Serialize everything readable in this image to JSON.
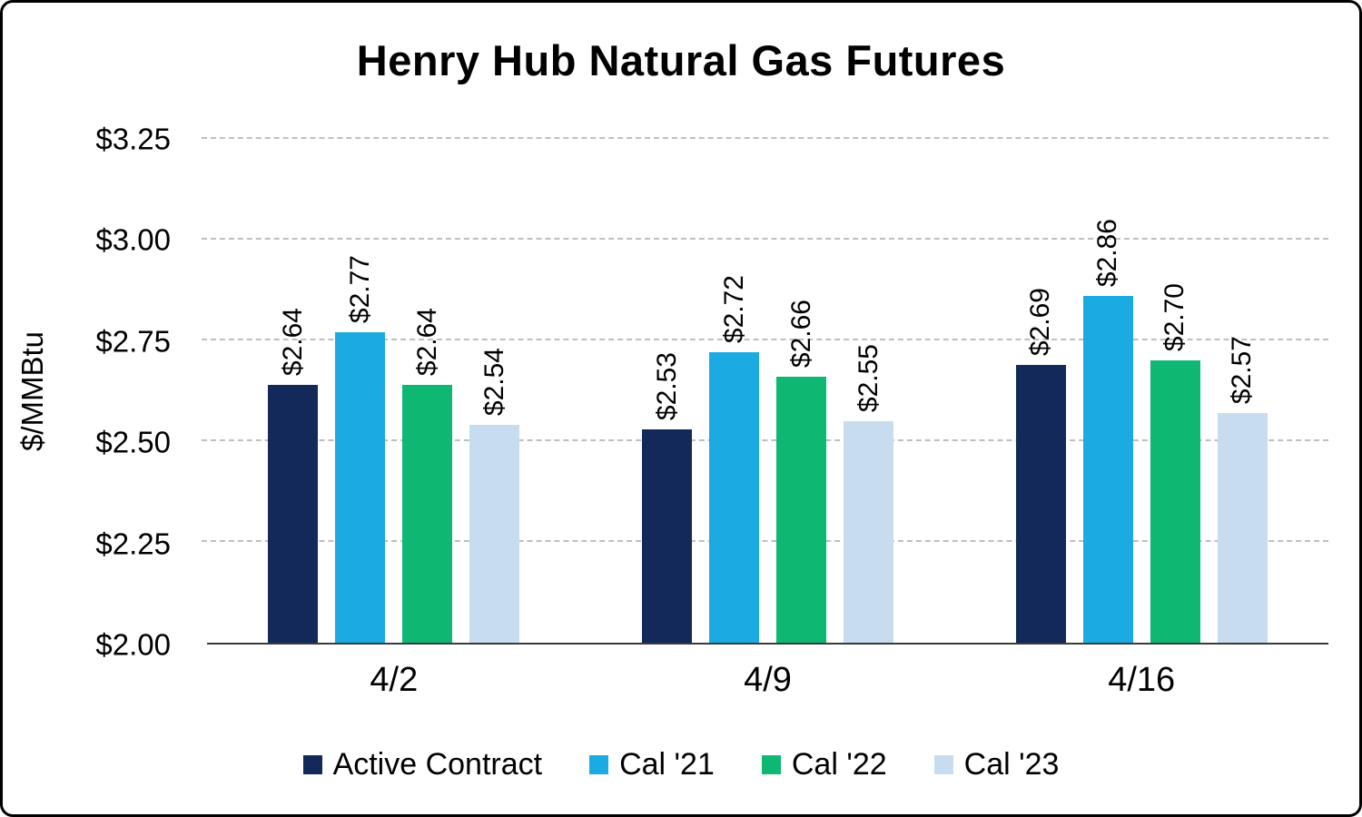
{
  "title": "Henry Hub Natural Gas Futures",
  "chart_data": {
    "type": "bar",
    "title": "Henry Hub Natural Gas Futures",
    "ylabel": "$/MMBtu",
    "xlabel": "",
    "categories": [
      "4/2",
      "4/9",
      "4/16"
    ],
    "series": [
      {
        "name": "Active Contract",
        "color": "#12295A",
        "values": [
          2.64,
          2.53,
          2.69
        ]
      },
      {
        "name": "Cal '21",
        "color": "#1BAAE1",
        "values": [
          2.77,
          2.72,
          2.86
        ]
      },
      {
        "name": "Cal '22",
        "color": "#0EB873",
        "values": [
          2.64,
          2.66,
          2.7
        ]
      },
      {
        "name": "Cal '23",
        "color": "#C8DCF0",
        "values": [
          2.54,
          2.55,
          2.57
        ]
      }
    ],
    "data_labels": [
      [
        "$2.64",
        "$2.77",
        "$2.64",
        "$2.54"
      ],
      [
        "$2.53",
        "$2.72",
        "$2.66",
        "$2.55"
      ],
      [
        "$2.69",
        "$2.86",
        "$2.70",
        "$2.57"
      ]
    ],
    "ylim": [
      2.0,
      3.25
    ],
    "yticks": [
      2.0,
      2.25,
      2.5,
      2.75,
      3.0,
      3.25
    ],
    "ytick_labels": [
      "$2.00",
      "$2.25",
      "$2.50",
      "$2.75",
      "$3.00",
      "$3.25"
    ],
    "grid": "horizontal-dashed",
    "legend_position": "bottom"
  }
}
